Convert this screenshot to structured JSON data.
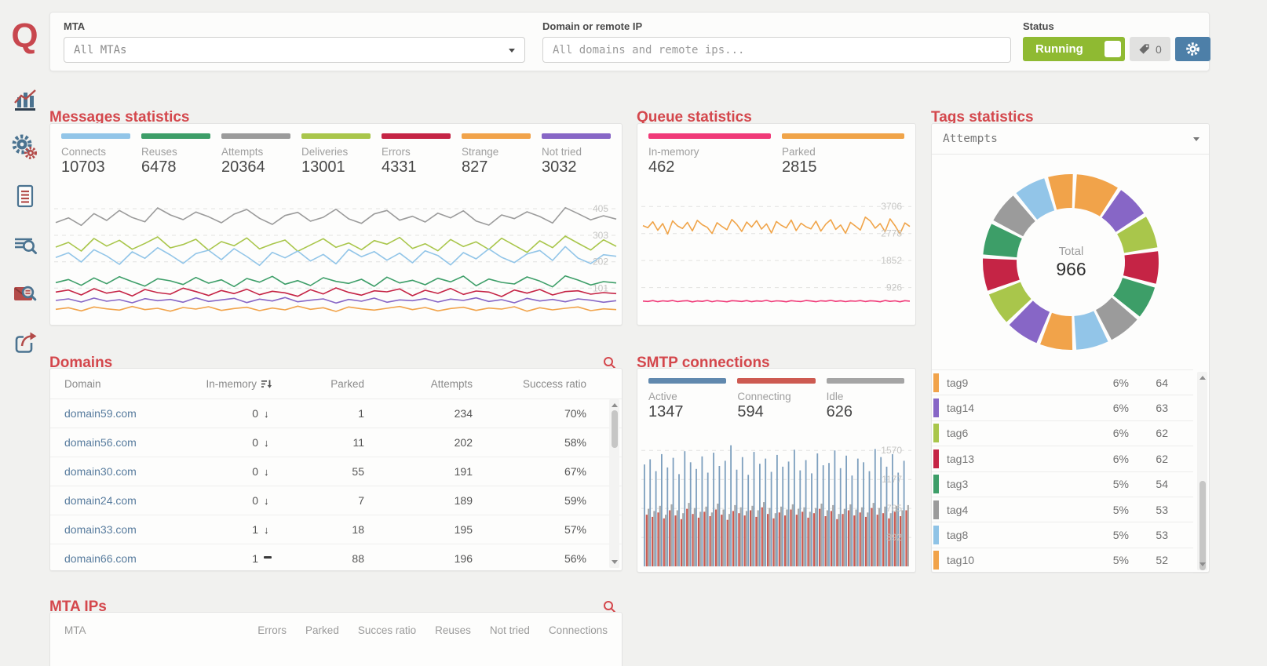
{
  "app": {
    "logo_letter": "Q"
  },
  "topbar": {
    "mta_label": "MTA",
    "mta_value": "All MTAs",
    "domain_label": "Domain or remote IP",
    "domain_placeholder": "All domains and remote ips...",
    "status_label": "Status",
    "status_value": "Running",
    "tag_count": "0"
  },
  "sidebar_items": [
    "statistics",
    "settings",
    "documents",
    "log-search",
    "message-search",
    "share"
  ],
  "sections": {
    "messages": {
      "title": "Messages statistics",
      "stats": [
        {
          "label": "Connects",
          "value": "10703",
          "color": "#92c5e8"
        },
        {
          "label": "Reuses",
          "value": "6478",
          "color": "#3d9e68"
        },
        {
          "label": "Attempts",
          "value": "20364",
          "color": "#9b9b9b"
        },
        {
          "label": "Deliveries",
          "value": "13001",
          "color": "#a9c64b"
        },
        {
          "label": "Errors",
          "value": "4331",
          "color": "#c52445"
        },
        {
          "label": "Strange",
          "value": "827",
          "color": "#f1a34a"
        },
        {
          "label": "Not tried",
          "value": "3032",
          "color": "#8766c6"
        }
      ]
    },
    "queue": {
      "title": "Queue statistics",
      "stats": [
        {
          "label": "In-memory",
          "value": "462",
          "color": "#f03a78"
        },
        {
          "label": "Parked",
          "value": "2815",
          "color": "#f0a449"
        }
      ]
    },
    "smtp": {
      "title": "SMTP connections",
      "stats": [
        {
          "label": "Active",
          "value": "1347",
          "color": "#6189ae"
        },
        {
          "label": "Connecting",
          "value": "594",
          "color": "#cd5a51"
        },
        {
          "label": "Idle",
          "value": "626",
          "color": "#a5a5a5"
        }
      ]
    },
    "domains": {
      "title": "Domains",
      "headers": [
        "Domain",
        "In-memory",
        "Parked",
        "Attempts",
        "Success ratio"
      ],
      "rows": [
        {
          "domain": "domain59.com",
          "in_memory": "0",
          "trend": "down",
          "parked": "1",
          "attempts": "234",
          "success_ratio": "70%"
        },
        {
          "domain": "domain56.com",
          "in_memory": "0",
          "trend": "down",
          "parked": "11",
          "attempts": "202",
          "success_ratio": "58%"
        },
        {
          "domain": "domain30.com",
          "in_memory": "0",
          "trend": "down",
          "parked": "55",
          "attempts": "191",
          "success_ratio": "67%"
        },
        {
          "domain": "domain24.com",
          "in_memory": "0",
          "trend": "down",
          "parked": "7",
          "attempts": "189",
          "success_ratio": "59%"
        },
        {
          "domain": "domain33.com",
          "in_memory": "1",
          "trend": "down",
          "parked": "18",
          "attempts": "195",
          "success_ratio": "57%"
        },
        {
          "domain": "domain66.com",
          "in_memory": "1",
          "trend": "flat",
          "parked": "88",
          "attempts": "196",
          "success_ratio": "56%"
        }
      ]
    },
    "mta_ips": {
      "title": "MTA IPs",
      "headers": [
        "MTA",
        "Errors",
        "Parked",
        "Succes ratio",
        "Reuses",
        "Not tried",
        "Connections"
      ]
    },
    "tags": {
      "title": "Tags statistics",
      "metric_value": "Attempts",
      "total_label": "Total",
      "total_value": "966",
      "rows": [
        {
          "name": "tag9",
          "percent": "6%",
          "value": "64",
          "color": "#f1a34a"
        },
        {
          "name": "tag14",
          "percent": "6%",
          "value": "63",
          "color": "#8766c6"
        },
        {
          "name": "tag6",
          "percent": "6%",
          "value": "62",
          "color": "#a9c64b"
        },
        {
          "name": "tag13",
          "percent": "6%",
          "value": "62",
          "color": "#c52445"
        },
        {
          "name": "tag3",
          "percent": "5%",
          "value": "54",
          "color": "#3d9e68"
        },
        {
          "name": "tag4",
          "percent": "5%",
          "value": "53",
          "color": "#9b9b9b"
        },
        {
          "name": "tag8",
          "percent": "5%",
          "value": "53",
          "color": "#8fc3e6"
        },
        {
          "name": "tag10",
          "percent": "5%",
          "value": "52",
          "color": "#f1a34a"
        }
      ]
    }
  },
  "chart_data": [
    {
      "id": "messages-chart",
      "type": "line",
      "ylim": [
        0,
        444
      ],
      "gridlines": [
        101,
        202,
        303,
        405
      ],
      "grid": "dashed",
      "legend": "none",
      "series": [
        {
          "name": "Attempts",
          "color": "#9b9b9b",
          "values": [
            352,
            370,
            341,
            386,
            360,
            398,
            371,
            355,
            408,
            381,
            363,
            392,
            374,
            351,
            384,
            402,
            368,
            345,
            379,
            391,
            357,
            372,
            403,
            366,
            349,
            385,
            398,
            361,
            376,
            354,
            388,
            370,
            397,
            358,
            342,
            381,
            367,
            393,
            375,
            350,
            409,
            386,
            362,
            378,
            365
          ]
        },
        {
          "name": "Deliveries",
          "color": "#a9c64b",
          "values": [
            258,
            276,
            243,
            291,
            262,
            284,
            250,
            272,
            297,
            255,
            268,
            288,
            246,
            279,
            263,
            293,
            251,
            270,
            285,
            242,
            266,
            290,
            257,
            274,
            248,
            283,
            269,
            295,
            253,
            271,
            244,
            287,
            260,
            278,
            249,
            292,
            265,
            238,
            282,
            256,
            300,
            273,
            247,
            286,
            261
          ]
        },
        {
          "name": "Connects",
          "color": "#92c5e8",
          "values": [
            218,
            236,
            201,
            248,
            224,
            192,
            240,
            215,
            256,
            228,
            196,
            233,
            246,
            210,
            252,
            222,
            188,
            238,
            217,
            243,
            205,
            230,
            194,
            249,
            221,
            241,
            208,
            235,
            198,
            244,
            226,
            190,
            237,
            213,
            251,
            219,
            199,
            232,
            245,
            207,
            260,
            216,
            195,
            229,
            223
          ]
        },
        {
          "name": "Reuses",
          "color": "#3d9e68",
          "values": [
            122,
            134,
            112,
            140,
            118,
            145,
            126,
            109,
            137,
            129,
            115,
            142,
            120,
            133,
            107,
            138,
            124,
            146,
            116,
            130,
            111,
            141,
            127,
            119,
            135,
            108,
            143,
            121,
            131,
            114,
            139,
            125,
            147,
            110,
            136,
            123,
            117,
            144,
            128,
            106,
            148,
            132,
            113,
            126,
            121
          ]
        },
        {
          "name": "Errors",
          "color": "#c52445",
          "values": [
            86,
            94,
            75,
            99,
            82,
            90,
            71,
            96,
            84,
            78,
            101,
            88,
            73,
            92,
            80,
            97,
            76,
            89,
            83,
            70,
            95,
            79,
            102,
            85,
            74,
            91,
            87,
            98,
            72,
            93,
            81,
            100,
            77,
            90,
            86,
            69,
            94,
            82,
            96,
            75,
            88,
            91,
            78,
            84,
            80
          ]
        },
        {
          "name": "Not tried",
          "color": "#8766c6",
          "values": [
            54,
            60,
            48,
            63,
            51,
            57,
            45,
            61,
            53,
            58,
            47,
            64,
            50,
            56,
            62,
            46,
            59,
            52,
            65,
            49,
            55,
            60,
            44,
            58,
            51,
            63,
            47,
            56,
            53,
            61,
            48,
            59,
            54,
            64,
            50,
            57,
            45,
            62,
            52,
            58,
            49,
            60,
            55,
            47,
            53
          ]
        },
        {
          "name": "Strange",
          "color": "#f1a34a",
          "values": [
            20,
            26,
            14,
            29,
            22,
            17,
            31,
            19,
            24,
            13,
            27,
            21,
            30,
            16,
            23,
            28,
            15,
            25,
            18,
            32,
            20,
            26,
            12,
            29,
            22,
            17,
            24,
            31,
            19,
            27,
            14,
            23,
            28,
            16,
            25,
            21,
            30,
            13,
            26,
            18,
            24,
            29,
            15,
            22,
            19
          ]
        }
      ]
    },
    {
      "id": "queue-chart",
      "type": "line",
      "ylim": [
        0,
        3980
      ],
      "gridlines": [
        926,
        1852,
        2778,
        3706
      ],
      "grid": "dashed",
      "legend": "none",
      "series": [
        {
          "name": "Parked",
          "color": "#f0a449",
          "values": [
            3050,
            2980,
            3180,
            2890,
            3120,
            2760,
            3210,
            3040,
            2950,
            3160,
            2870,
            3230,
            3080,
            2990,
            2780,
            3150,
            3020,
            2910,
            3260,
            3090,
            2850,
            3170,
            3000,
            3220,
            2930,
            3110,
            2800,
            3190,
            3060,
            2970,
            3240,
            2880,
            3130,
            3010,
            2940,
            3200,
            2860,
            3100,
            3250,
            2920,
            3070,
            2790,
            3160,
            3030,
            2900,
            3340,
            3210,
            2960,
            3120,
            2840,
            3280,
            3050,
            2770,
            3140,
            3020
          ]
        },
        {
          "name": "In-memory",
          "color": "#f03a78",
          "values": [
            462,
            448,
            478,
            440,
            470,
            455,
            482,
            445,
            465,
            475,
            436,
            468,
            452,
            484,
            442,
            472,
            458,
            438,
            476,
            464,
            450,
            480,
            441,
            469,
            454,
            486,
            444,
            471,
            462,
            437,
            477,
            456,
            447,
            482,
            466,
            440,
            473,
            460,
            488,
            451,
            474,
            443,
            468,
            457,
            479,
            446,
            472,
            463,
            439,
            481,
            453,
            470,
            437,
            475,
            461
          ]
        }
      ]
    },
    {
      "id": "smtp-chart",
      "type": "bar",
      "ylim": [
        0,
        1700
      ],
      "gridlines": [
        392,
        785,
        1177,
        1570
      ],
      "grid": "dashed",
      "legend": "none",
      "series": [
        {
          "name": "Active",
          "color": "#7d9fbe",
          "values": [
            1380,
            1450,
            1290,
            1520,
            1340,
            1470,
            1250,
            1560,
            1410,
            1320,
            1490,
            1270,
            1540,
            1360,
            1430,
            1640,
            1310,
            1480,
            1240,
            1550,
            1390,
            1460,
            1280,
            1510,
            1350,
            1420,
            1580,
            1300,
            1440,
            1260,
            1530,
            1370,
            1400,
            1570,
            1330,
            1500,
            1230,
            1460,
            1410,
            1290,
            1590,
            1480,
            1350,
            1520,
            1270,
            1430
          ]
        },
        {
          "name": "Connecting",
          "color": "#cd5a51",
          "values": [
            700,
            670,
            730,
            650,
            760,
            690,
            640,
            780,
            710,
            660,
            740,
            680,
            770,
            700,
            630,
            750,
            720,
            690,
            760,
            670,
            800,
            710,
            650,
            730,
            690,
            770,
            700,
            740,
            660,
            720,
            780,
            680,
            750,
            640,
            710,
            760,
            690,
            730,
            670,
            790,
            700,
            720,
            650,
            740,
            680,
            760
          ]
        },
        {
          "name": "Idle",
          "color": "#a9a9a9",
          "values": [
            780,
            750,
            820,
            700,
            840,
            760,
            720,
            860,
            790,
            740,
            810,
            730,
            850,
            770,
            710,
            830,
            800,
            750,
            820,
            760,
            870,
            790,
            720,
            810,
            770,
            840,
            780,
            800,
            740,
            790,
            850,
            760,
            830,
            710,
            780,
            840,
            770,
            800,
            730,
            860,
            790,
            810,
            720,
            820,
            760,
            830
          ]
        }
      ]
    },
    {
      "id": "tags-donut",
      "type": "donut",
      "title": "Attempts",
      "total": 966,
      "segments": [
        {
          "color": "#f1a34a",
          "percent": 9.0
        },
        {
          "color": "#8766c6",
          "percent": 6.8
        },
        {
          "color": "#a9c64b",
          "percent": 6.8
        },
        {
          "color": "#c52445",
          "percent": 6.8
        },
        {
          "color": "#3d9e68",
          "percent": 6.8
        },
        {
          "color": "#9b9b9b",
          "percent": 6.8
        },
        {
          "color": "#92c5e8",
          "percent": 6.8
        },
        {
          "color": "#f1a34a",
          "percent": 6.8
        },
        {
          "color": "#8766c6",
          "percent": 6.8
        },
        {
          "color": "#a9c64b",
          "percent": 6.8
        },
        {
          "color": "#c52445",
          "percent": 6.8
        },
        {
          "color": "#3d9e68",
          "percent": 6.6
        },
        {
          "color": "#9b9b9b",
          "percent": 6.6
        },
        {
          "color": "#92c5e8",
          "percent": 6.6
        },
        {
          "color": "#f1a34a",
          "percent": 5.2
        }
      ]
    }
  ]
}
